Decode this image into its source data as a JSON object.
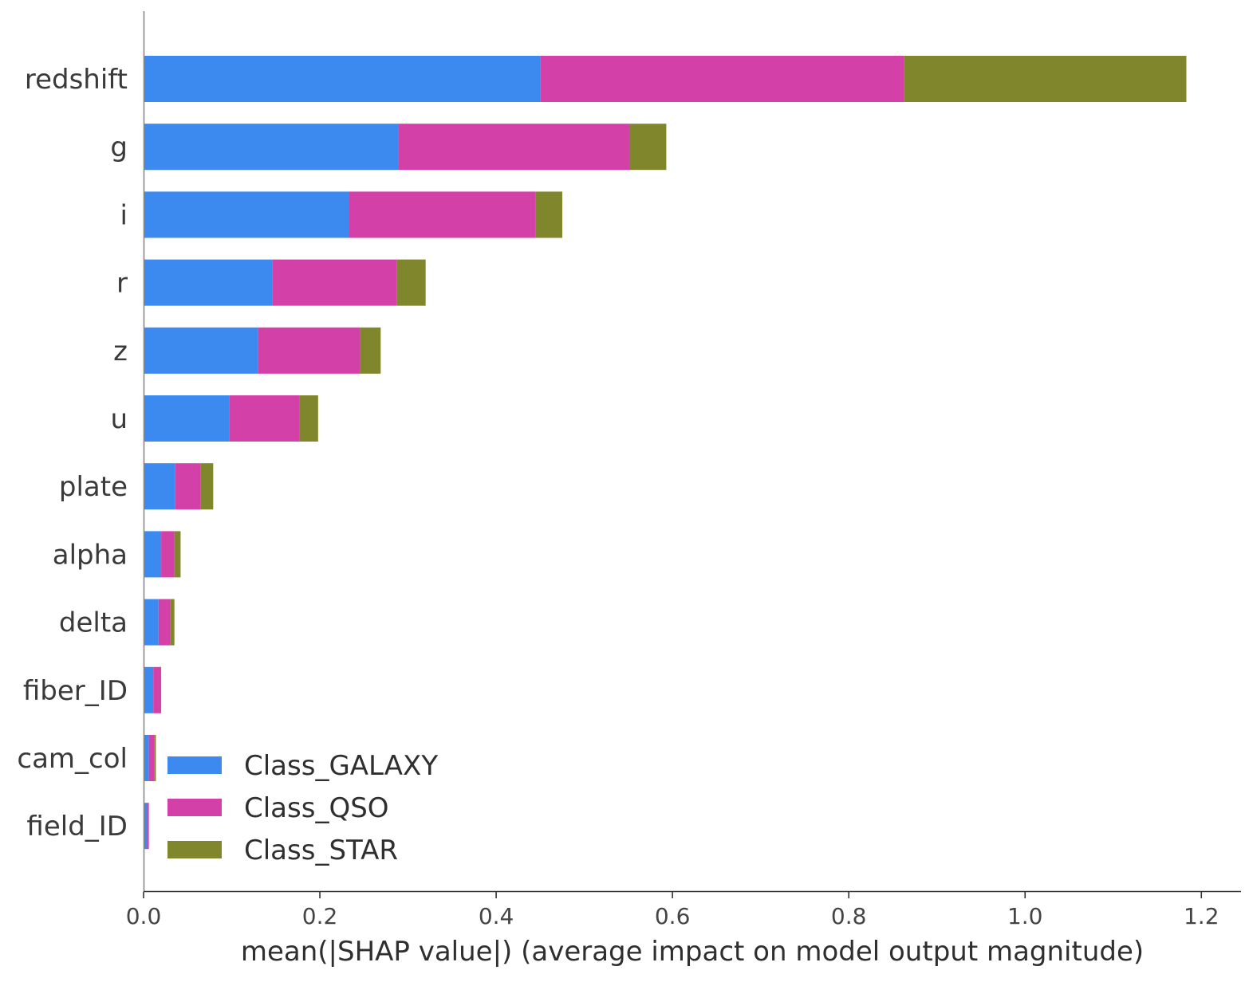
{
  "chart_data": {
    "type": "bar",
    "orientation": "horizontal",
    "stacked": true,
    "categories": [
      "redshift",
      "g",
      "i",
      "r",
      "z",
      "u",
      "plate",
      "alpha",
      "delta",
      "fiber_ID",
      "cam_col",
      "field_ID"
    ],
    "series": [
      {
        "name": "Class_GALAXY",
        "color": "#3c89f0",
        "values": [
          0.45,
          0.289,
          0.233,
          0.146,
          0.13,
          0.097,
          0.036,
          0.02,
          0.017,
          0.011,
          0.006,
          0.004
        ]
      },
      {
        "name": "Class_QSO",
        "color": "#d340a8",
        "values": [
          0.413,
          0.262,
          0.212,
          0.141,
          0.116,
          0.08,
          0.029,
          0.015,
          0.013,
          0.008,
          0.006,
          0.002
        ]
      },
      {
        "name": "Class_STAR",
        "color": "#80862b",
        "values": [
          0.32,
          0.042,
          0.03,
          0.033,
          0.023,
          0.021,
          0.014,
          0.007,
          0.005,
          0.001,
          0.002,
          0.0
        ]
      }
    ],
    "xlabel": "mean(|SHAP value|) (average impact on model output magnitude)",
    "xlim": [
      0,
      1.245
    ],
    "xticks": [
      0.0,
      0.2,
      0.4,
      0.6,
      0.8,
      1.0,
      1.2
    ],
    "xtick_labels": [
      "0.0",
      "0.2",
      "0.4",
      "0.6",
      "0.8",
      "1.0",
      "1.2"
    ],
    "grid": false,
    "legend_position": "lower-left"
  }
}
